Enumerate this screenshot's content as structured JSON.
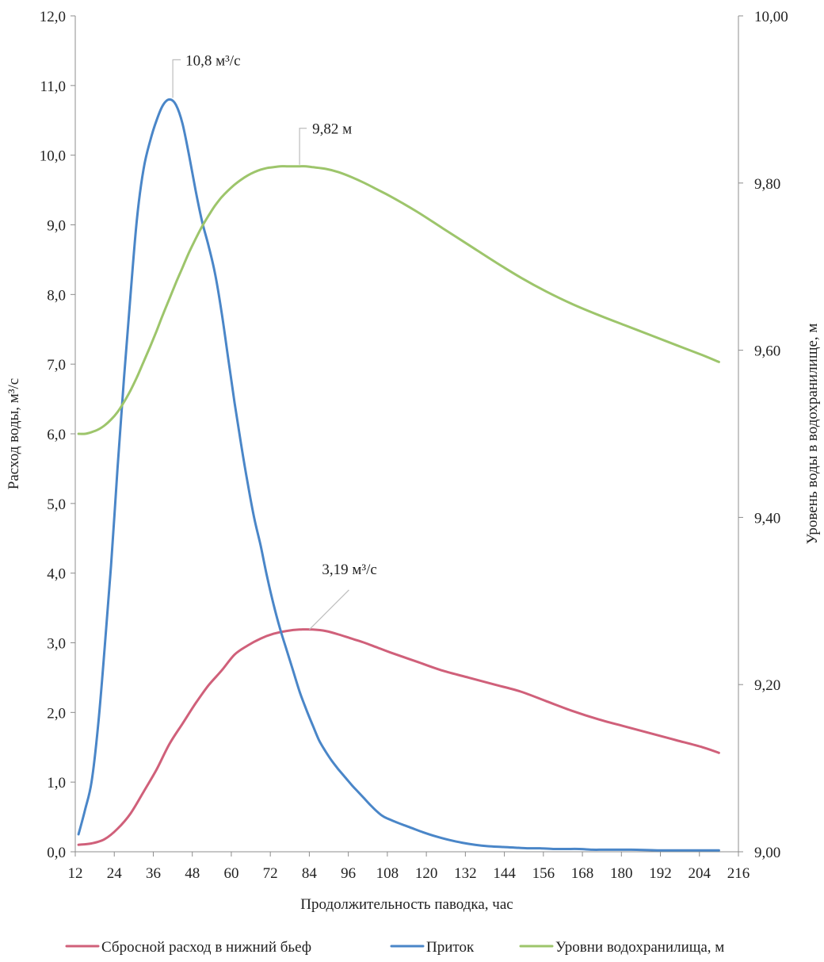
{
  "chart_data": {
    "type": "line",
    "xlabel": "Продолжительность паводка, час",
    "ylabel_left": "Расход воды, м³/с",
    "ylabel_right": "Уровень воды в водохранилище, м",
    "xlim": [
      12,
      216
    ],
    "ylim_left": [
      0,
      12
    ],
    "ylim_right": [
      9.0,
      10.0
    ],
    "x_ticks": [
      12,
      24,
      36,
      48,
      60,
      72,
      84,
      96,
      108,
      120,
      132,
      144,
      156,
      168,
      180,
      192,
      204,
      216
    ],
    "x_tick_labels": [
      "12",
      "24",
      "36",
      "48",
      "60",
      "72",
      "84",
      "96",
      "108",
      "120",
      "132",
      "144",
      "156",
      "168",
      "180",
      "192",
      "204",
      "216"
    ],
    "y_left_ticks": [
      0,
      1,
      2,
      3,
      4,
      5,
      6,
      7,
      8,
      9,
      10,
      11,
      12
    ],
    "y_left_tick_labels": [
      "0,0",
      "1,0",
      "2,0",
      "3,0",
      "4,0",
      "5,0",
      "6,0",
      "7,0",
      "8,0",
      "9,0",
      "10,0",
      "11,0",
      "12,0"
    ],
    "y_right_ticks": [
      9.0,
      9.2,
      9.4,
      9.6,
      9.8,
      10.0
    ],
    "y_right_tick_labels": [
      "9,00",
      "9,20",
      "9,40",
      "9,60",
      "9,80",
      "10,00"
    ],
    "grid": false,
    "legend_position": "bottom",
    "series": [
      {
        "name": "Сбросной расход в нижний бьеф",
        "axis": "left",
        "color": "#d0607a",
        "x": [
          13,
          17,
          21,
          25,
          29,
          33,
          37,
          41,
          45,
          49,
          53,
          57,
          61,
          65,
          69,
          73,
          77,
          81,
          85,
          89,
          93,
          97,
          101,
          105,
          109,
          117,
          125,
          133,
          141,
          149,
          157,
          165,
          173,
          181,
          189,
          197,
          205,
          210
        ],
        "values": [
          0.1,
          0.12,
          0.18,
          0.33,
          0.55,
          0.86,
          1.18,
          1.55,
          1.84,
          2.13,
          2.39,
          2.6,
          2.83,
          2.96,
          3.06,
          3.13,
          3.17,
          3.19,
          3.19,
          3.17,
          3.12,
          3.06,
          3.0,
          2.93,
          2.86,
          2.73,
          2.6,
          2.5,
          2.4,
          2.3,
          2.16,
          2.02,
          1.9,
          1.8,
          1.7,
          1.6,
          1.5,
          1.42
        ]
      },
      {
        "name": "Приток",
        "axis": "left",
        "color": "#4a86c8",
        "x": [
          13,
          15,
          17,
          19,
          21,
          23,
          25,
          27,
          29,
          31,
          33,
          35,
          37,
          39,
          41,
          43,
          45,
          47,
          49,
          51,
          53,
          55,
          57,
          59,
          61,
          63,
          65,
          67,
          69,
          71,
          73,
          75,
          77,
          79,
          81,
          83,
          85,
          87,
          89,
          91,
          93,
          95,
          97,
          99,
          101,
          103,
          105,
          107,
          111,
          115,
          119,
          123,
          127,
          131,
          135,
          139,
          143,
          147,
          151,
          155,
          159,
          163,
          167,
          171,
          175,
          183,
          191,
          199,
          207,
          210
        ],
        "values": [
          0.25,
          0.6,
          1.0,
          1.8,
          2.9,
          4.1,
          5.5,
          6.8,
          8.0,
          9.1,
          9.8,
          10.2,
          10.5,
          10.72,
          10.8,
          10.72,
          10.45,
          10.0,
          9.5,
          9.05,
          8.7,
          8.3,
          7.75,
          7.1,
          6.45,
          5.85,
          5.3,
          4.8,
          4.4,
          3.95,
          3.55,
          3.2,
          2.9,
          2.6,
          2.3,
          2.05,
          1.82,
          1.6,
          1.44,
          1.3,
          1.18,
          1.07,
          0.96,
          0.86,
          0.76,
          0.66,
          0.57,
          0.5,
          0.42,
          0.35,
          0.28,
          0.22,
          0.17,
          0.13,
          0.1,
          0.08,
          0.07,
          0.06,
          0.05,
          0.05,
          0.04,
          0.04,
          0.04,
          0.03,
          0.03,
          0.03,
          0.02,
          0.02,
          0.02,
          0.02
        ]
      },
      {
        "name": "Уровни водохранилища, м",
        "axis": "right",
        "color": "#9dc56b",
        "x": [
          13,
          15,
          17,
          19,
          21,
          23,
          25,
          27,
          29,
          31,
          33,
          35,
          37,
          39,
          41,
          43,
          45,
          47,
          49,
          51,
          53,
          55,
          57,
          59,
          61,
          63,
          65,
          67,
          69,
          71,
          73,
          75,
          77,
          79,
          81,
          83,
          85,
          89,
          93,
          97,
          101,
          105,
          109,
          117,
          125,
          133,
          141,
          149,
          157,
          165,
          173,
          181,
          189,
          197,
          205,
          210
        ],
        "values": [
          9.5,
          9.5,
          9.502,
          9.505,
          9.51,
          9.517,
          9.526,
          9.538,
          9.552,
          9.568,
          9.586,
          9.604,
          9.623,
          9.643,
          9.662,
          9.681,
          9.699,
          9.717,
          9.733,
          9.748,
          9.761,
          9.773,
          9.783,
          9.791,
          9.798,
          9.804,
          9.809,
          9.813,
          9.816,
          9.818,
          9.819,
          9.82,
          9.82,
          9.82,
          9.82,
          9.82,
          9.819,
          9.817,
          9.813,
          9.807,
          9.8,
          9.792,
          9.784,
          9.766,
          9.746,
          9.726,
          9.706,
          9.687,
          9.67,
          9.655,
          9.642,
          9.63,
          9.618,
          9.606,
          9.594,
          9.586
        ]
      }
    ],
    "annotations": [
      {
        "series": "Приток",
        "text": "10,8 м³/с",
        "x": 42,
        "y": 10.8,
        "axis": "left",
        "anchor": "above"
      },
      {
        "series": "Уровни водохранилища, м",
        "text": "9,82 м",
        "x": 81,
        "y": 9.82,
        "axis": "right",
        "anchor": "above-right"
      },
      {
        "series": "Сбросной расход в нижний бьеф",
        "text": "3,19 м³/с",
        "x": 84,
        "y": 3.19,
        "axis": "left",
        "anchor": "above-right"
      }
    ]
  }
}
